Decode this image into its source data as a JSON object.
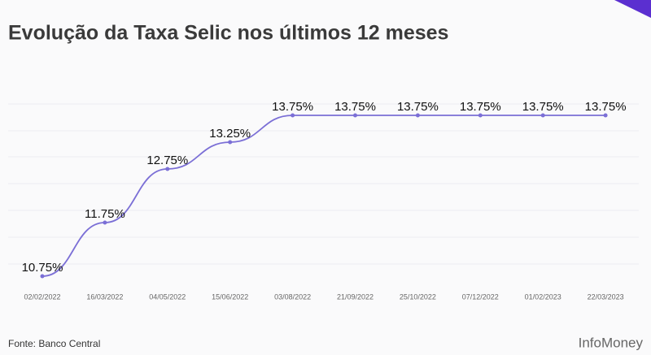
{
  "chart_data": {
    "type": "line",
    "title": "Evolução da Taxa Selic nos últimos 12 meses",
    "categories": [
      "02/02/2022",
      "16/03/2022",
      "04/05/2022",
      "15/06/2022",
      "03/08/2022",
      "21/09/2022",
      "25/10/2022",
      "07/12/2022",
      "01/02/2023",
      "22/03/2023"
    ],
    "series": [
      {
        "name": "Taxa Selic",
        "color": "#7b6fd6",
        "values": [
          10.75,
          11.75,
          12.75,
          13.25,
          13.75,
          13.75,
          13.75,
          13.75,
          13.75,
          13.75
        ],
        "value_labels": [
          "10.75%",
          "11.75%",
          "12.75%",
          "13.25%",
          "13.75%",
          "13.75%",
          "13.75%",
          "13.75%",
          "13.75%",
          "13.75%"
        ]
      }
    ],
    "ylim": [
      10.5,
      14.25
    ],
    "source": "Fonte: Banco Central",
    "brand": "InfoMoney"
  }
}
